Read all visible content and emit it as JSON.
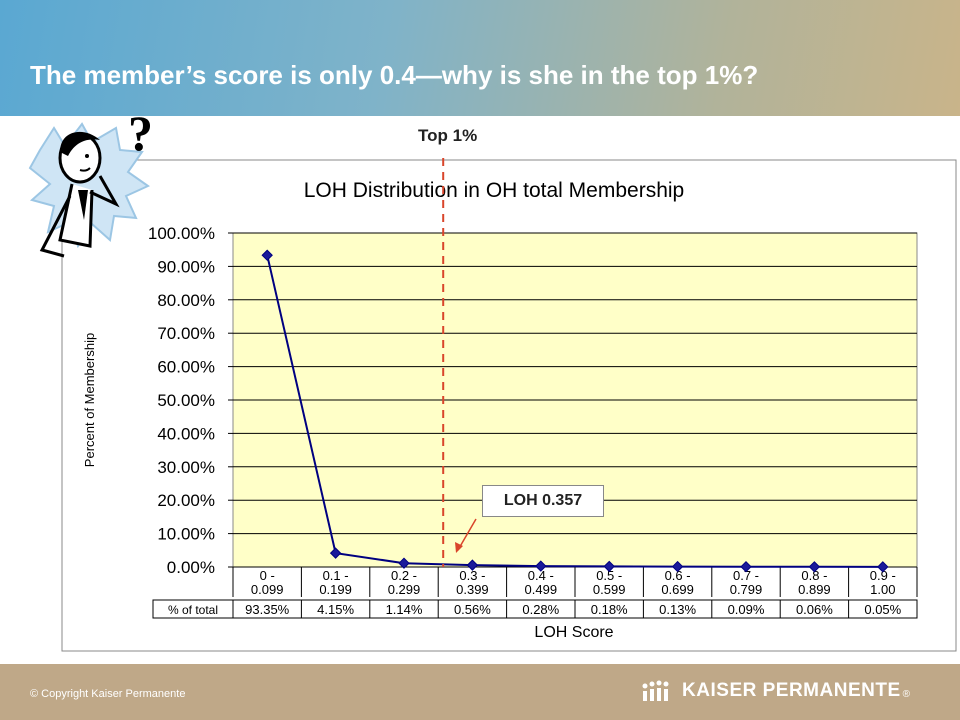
{
  "slide": {
    "title": "The member’s score is only 0.4—why is she in the top 1%?",
    "top_label": "Top 1%",
    "callout": "LOH 0.357",
    "copyright": "© Copyright Kaiser Permanente",
    "logo_text": "KAISER PERMANENTE",
    "logo_mark": "®"
  },
  "colors": {
    "plot_bg": "#ffffc8",
    "series": "#000080",
    "marker": "#1a1a9a",
    "top_line": "#d9452b"
  },
  "icons": [
    "thinking-person-icon",
    "question-mark-icon",
    "kaiser-logo-icon"
  ],
  "chart_data": {
    "type": "line",
    "title": "LOH Distribution in OH total Membership",
    "xlabel": "LOH Score",
    "ylabel": "Percent of Membership",
    "ylim": [
      0,
      100
    ],
    "grid": true,
    "y_ticks": [
      "0.00%",
      "10.00%",
      "20.00%",
      "30.00%",
      "40.00%",
      "50.00%",
      "60.00%",
      "70.00%",
      "80.00%",
      "90.00%",
      "100.00%"
    ],
    "categories": [
      [
        "0 -",
        "0.099"
      ],
      [
        "0.1 -",
        "0.199"
      ],
      [
        "0.2 -",
        "0.299"
      ],
      [
        "0.3 -",
        "0.399"
      ],
      [
        "0.4 -",
        "0.499"
      ],
      [
        "0.5 -",
        "0.599"
      ],
      [
        "0.6 -",
        "0.699"
      ],
      [
        "0.7 -",
        "0.799"
      ],
      [
        "0.8 -",
        "0.899"
      ],
      [
        "0.9 -",
        "1.00"
      ]
    ],
    "table_header": "% of total",
    "table_values": [
      "93.35%",
      "4.15%",
      "1.14%",
      "0.56%",
      "0.28%",
      "0.18%",
      "0.13%",
      "0.09%",
      "0.06%",
      "0.05%"
    ],
    "values": [
      93.35,
      4.15,
      1.14,
      0.56,
      0.28,
      0.18,
      0.13,
      0.09,
      0.06,
      0.05
    ],
    "top_marker_between": [
      2,
      3
    ]
  }
}
